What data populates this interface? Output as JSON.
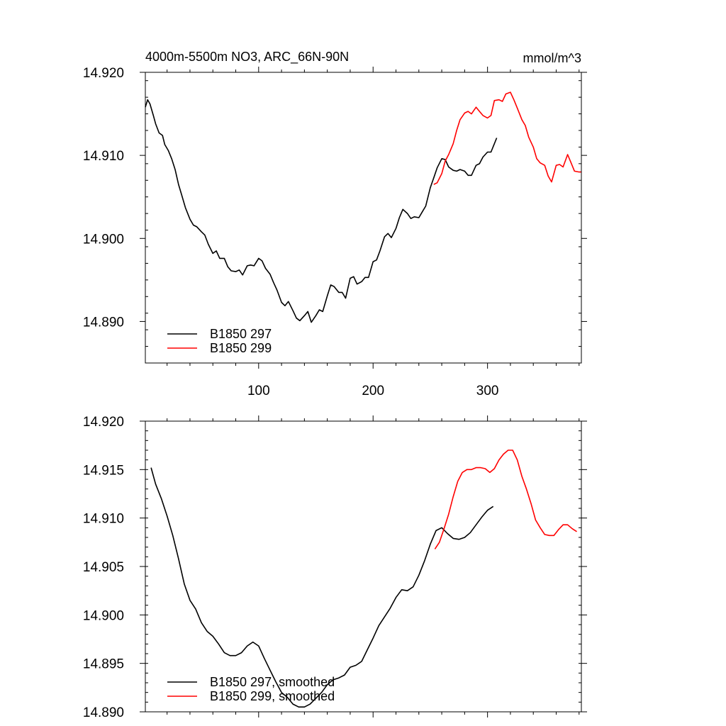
{
  "colors": {
    "run297": "#000000",
    "run299": "#ff0000"
  },
  "chart_data": [
    {
      "type": "line",
      "title": "4000m-5500m NO3, ARC_66N-90N",
      "units": "mmol/m^3",
      "xlim": [
        1,
        382
      ],
      "ylim": [
        14.885,
        14.92
      ],
      "xticks": [
        100,
        200,
        300
      ],
      "xtick_labels": [
        "100",
        "200",
        "300"
      ],
      "yticks": [
        14.89,
        14.9,
        14.91,
        14.92
      ],
      "ytick_labels": [
        "14.890",
        "14.900",
        "14.910",
        "14.920"
      ],
      "yminor_step": 0.002,
      "legend_position": "bottom-left",
      "series": [
        {
          "name": "B1850 297",
          "color_key": "run297",
          "x": [
            1,
            3,
            5,
            8,
            10,
            13,
            16,
            18,
            21,
            24,
            27,
            30,
            33,
            36,
            40,
            43,
            46,
            50,
            53,
            56,
            60,
            63,
            66,
            70,
            73,
            76,
            80,
            83,
            86,
            90,
            93,
            96,
            100,
            103,
            106,
            110,
            113,
            116,
            120,
            123,
            126,
            130,
            133,
            136,
            140,
            143,
            146,
            150,
            153,
            156,
            160,
            163,
            166,
            170,
            173,
            176,
            180,
            183,
            186,
            190,
            193,
            196,
            200,
            203,
            206,
            210,
            213,
            216,
            220,
            223,
            226,
            230,
            233,
            236,
            240,
            243,
            246,
            250,
            253,
            256,
            260,
            263,
            266,
            270,
            273,
            276,
            280,
            283,
            286,
            290,
            293,
            296,
            300,
            303,
            306,
            308
          ],
          "y": [
            14.9158,
            14.9167,
            14.9162,
            14.9148,
            14.9138,
            14.9127,
            14.9124,
            14.9113,
            14.9106,
            14.9096,
            14.9083,
            14.9065,
            14.9051,
            14.9037,
            14.9023,
            14.9016,
            14.9014,
            14.9008,
            14.9004,
            14.8993,
            14.8982,
            14.8985,
            14.8976,
            14.8976,
            14.8966,
            14.8961,
            14.896,
            14.8962,
            14.8956,
            14.8967,
            14.8968,
            14.8967,
            14.8976,
            14.8973,
            14.8964,
            14.8957,
            14.8947,
            14.8938,
            14.8923,
            14.8919,
            14.8924,
            14.8913,
            14.8904,
            14.8901,
            14.8907,
            14.8912,
            14.8899,
            14.8907,
            14.8914,
            14.8912,
            14.8931,
            14.8944,
            14.8942,
            14.8935,
            14.8935,
            14.8928,
            14.8952,
            14.8954,
            14.8945,
            14.8948,
            14.8953,
            14.8953,
            14.8972,
            14.8974,
            14.8985,
            14.9002,
            14.9006,
            14.9001,
            14.9012,
            14.9025,
            14.9035,
            14.903,
            14.9024,
            14.9026,
            14.9025,
            14.9032,
            14.9039,
            14.9061,
            14.9073,
            14.9085,
            14.9096,
            14.9095,
            14.9086,
            14.9082,
            14.9081,
            14.9083,
            14.9081,
            14.9076,
            14.9076,
            14.9088,
            14.909,
            14.9098,
            14.9104,
            14.9104,
            14.9114,
            14.9121
          ]
        },
        {
          "name": "B1850 299",
          "color_key": "run299",
          "x": [
            253,
            256,
            260,
            263,
            266,
            270,
            273,
            276,
            280,
            283,
            286,
            290,
            293,
            296,
            300,
            303,
            306,
            310,
            313,
            316,
            320,
            323,
            326,
            330,
            333,
            336,
            340,
            343,
            346,
            350,
            353,
            356,
            360,
            363,
            366,
            370,
            373,
            376,
            380,
            382
          ],
          "y": [
            14.9065,
            14.9067,
            14.9078,
            14.9093,
            14.9101,
            14.9114,
            14.913,
            14.9143,
            14.9151,
            14.9153,
            14.915,
            14.9158,
            14.9153,
            14.9148,
            14.9145,
            14.9148,
            14.9166,
            14.9167,
            14.9165,
            14.9174,
            14.9176,
            14.9167,
            14.9157,
            14.9143,
            14.9136,
            14.9122,
            14.911,
            14.9096,
            14.9091,
            14.9088,
            14.9075,
            14.9068,
            14.9088,
            14.9089,
            14.9086,
            14.9101,
            14.9091,
            14.9081,
            14.908,
            14.908
          ]
        }
      ]
    },
    {
      "type": "line",
      "title": "",
      "units": "",
      "xlim": [
        1,
        382
      ],
      "ylim": [
        14.89,
        14.92
      ],
      "xticks": [
        100,
        200,
        300
      ],
      "xtick_labels": [
        "",
        "",
        ""
      ],
      "yticks": [
        14.89,
        14.895,
        14.9,
        14.905,
        14.91,
        14.915,
        14.92
      ],
      "ytick_labels": [
        "14.890",
        "14.895",
        "14.900",
        "14.905",
        "14.910",
        "14.915",
        "14.920"
      ],
      "yminor_step": 0.001,
      "legend_position": "bottom-left",
      "series": [
        {
          "name": "B1850 297, smoothed",
          "color_key": "run297",
          "x": [
            6,
            10,
            15,
            20,
            25,
            30,
            35,
            40,
            45,
            50,
            55,
            60,
            65,
            70,
            75,
            80,
            85,
            90,
            95,
            100,
            105,
            110,
            115,
            120,
            125,
            130,
            135,
            140,
            145,
            150,
            155,
            160,
            165,
            170,
            175,
            180,
            185,
            190,
            195,
            200,
            205,
            210,
            215,
            220,
            225,
            230,
            235,
            240,
            245,
            250,
            255,
            260,
            265,
            270,
            275,
            280,
            285,
            290,
            295,
            300,
            305
          ],
          "y": [
            14.9152,
            14.9135,
            14.912,
            14.9102,
            14.9082,
            14.9058,
            14.9032,
            14.9015,
            14.9006,
            14.8992,
            14.8983,
            14.8978,
            14.897,
            14.8961,
            14.8958,
            14.8958,
            14.8961,
            14.8968,
            14.8972,
            14.8968,
            14.8955,
            14.8943,
            14.8931,
            14.892,
            14.8915,
            14.8908,
            14.8905,
            14.8905,
            14.8908,
            14.8914,
            14.892,
            14.8928,
            14.8933,
            14.8935,
            14.8938,
            14.8946,
            14.8948,
            14.8952,
            14.8964,
            14.8976,
            14.8989,
            14.8998,
            14.9007,
            14.9018,
            14.9026,
            14.9025,
            14.9029,
            14.9041,
            14.9056,
            14.9073,
            14.9087,
            14.909,
            14.9084,
            14.9079,
            14.9078,
            14.908,
            14.9085,
            14.9093,
            14.9101,
            14.9108,
            14.9112
          ]
        },
        {
          "name": "B1850 299, smoothed",
          "color_key": "run299",
          "x": [
            254,
            258,
            262,
            266,
            270,
            274,
            278,
            282,
            286,
            290,
            294,
            298,
            302,
            306,
            310,
            314,
            318,
            322,
            326,
            330,
            334,
            338,
            342,
            346,
            350,
            354,
            358,
            362,
            366,
            370,
            374,
            378
          ],
          "y": [
            14.9068,
            14.9075,
            14.9089,
            14.9104,
            14.9122,
            14.9138,
            14.9147,
            14.915,
            14.915,
            14.9152,
            14.9152,
            14.9151,
            14.9147,
            14.9151,
            14.916,
            14.9166,
            14.917,
            14.917,
            14.916,
            14.9143,
            14.913,
            14.9115,
            14.9098,
            14.909,
            14.9083,
            14.9082,
            14.9082,
            14.9088,
            14.9093,
            14.9093,
            14.9089,
            14.9086
          ]
        }
      ]
    }
  ]
}
